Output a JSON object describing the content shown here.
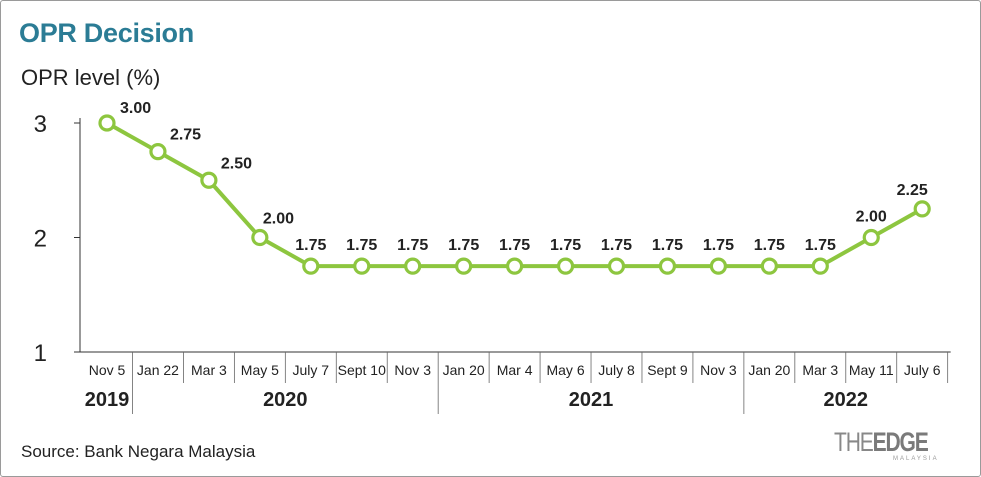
{
  "title": "OPR Decision",
  "source": "Source: Bank Negara Malaysia",
  "logo": {
    "main": "THEEDGE",
    "sub": "MALAYSIA"
  },
  "colors": {
    "title": "#2b7c95",
    "line": "#8dc63f",
    "text": "#222222",
    "axis": "#333333"
  },
  "chart_data": {
    "type": "line",
    "title": "OPR Decision",
    "ylabel": "OPR level (%)",
    "xlabel": "",
    "ylim": [
      1,
      3
    ],
    "yticks": [
      1,
      2,
      3
    ],
    "grid": false,
    "x": [
      "Nov 5",
      "Jan 22",
      "Mar 3",
      "May 5",
      "July 7",
      "Sept 10",
      "Nov 3",
      "Jan 20",
      "Mar 4",
      "May 6",
      "July 8",
      "Sept 9",
      "Nov 3",
      "Jan 20",
      "Mar 3",
      "May 11",
      "July 6"
    ],
    "values": [
      3.0,
      2.75,
      2.5,
      2.0,
      1.75,
      1.75,
      1.75,
      1.75,
      1.75,
      1.75,
      1.75,
      1.75,
      1.75,
      1.75,
      1.75,
      2.0,
      2.25
    ],
    "data_labels": [
      "3.00",
      "2.75",
      "2.50",
      "2.00",
      "1.75",
      "1.75",
      "1.75",
      "1.75",
      "1.75",
      "1.75",
      "1.75",
      "1.75",
      "1.75",
      "1.75",
      "1.75",
      "2.00",
      "2.25"
    ],
    "years": [
      {
        "label": "2019",
        "start": 0,
        "end": 0
      },
      {
        "label": "2020",
        "start": 1,
        "end": 6
      },
      {
        "label": "2021",
        "start": 7,
        "end": 12
      },
      {
        "label": "2022",
        "start": 13,
        "end": 16
      }
    ]
  }
}
